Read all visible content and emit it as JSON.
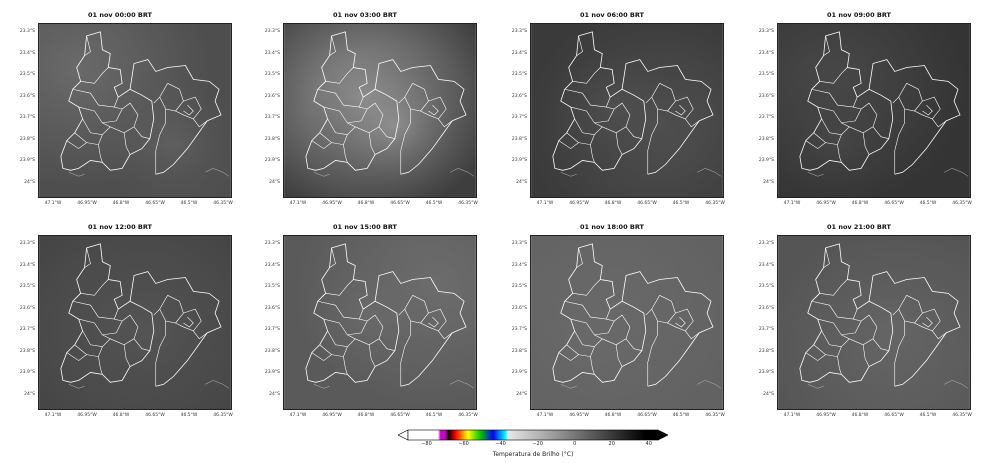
{
  "panels": [
    {
      "title": "01 nov 00:00 BRT",
      "tone": "#4e4e4e",
      "haze": "#6a6a6a"
    },
    {
      "title": "01 nov 03:00 BRT",
      "tone": "#3e3e3e",
      "haze": "#9a9a9a"
    },
    {
      "title": "01 nov 06:00 BRT",
      "tone": "#3a3a3a",
      "haze": "#525252"
    },
    {
      "title": "01 nov 09:00 BRT",
      "tone": "#343434",
      "haze": "#4a4a4a"
    },
    {
      "title": "01 nov 12:00 BRT",
      "tone": "#454545",
      "haze": "#555555"
    },
    {
      "title": "01 nov 15:00 BRT",
      "tone": "#5a5a5a",
      "haze": "#6e6e6e"
    },
    {
      "title": "01 nov 18:00 BRT",
      "tone": "#626262",
      "haze": "#6a6a6a"
    },
    {
      "title": "01 nov 21:00 BRT",
      "tone": "#555555",
      "haze": "#666666"
    }
  ],
  "y_ticks": [
    "23.3°S",
    "23.4°S",
    "23.5°S",
    "23.6°S",
    "23.7°S",
    "23.8°S",
    "23.9°S",
    "24°S"
  ],
  "x_ticks": [
    "47.1°W",
    "46.95°W",
    "46.8°W",
    "46.65°W",
    "46.5°W",
    "46.35°W"
  ],
  "colorbar": {
    "label": "Temperatura de Brilho (°C)",
    "ticks": [
      "−80",
      "−60",
      "−40",
      "−20",
      "0",
      "20",
      "40"
    ],
    "range": [
      -90,
      45
    ],
    "colors": {
      "white": "#ffffff",
      "magenta": "#c800c8",
      "black": "#000000",
      "red": "#ff0000",
      "yellow": "#ffff00",
      "green": "#00c800",
      "blue": "#0000ff",
      "cyan": "#00ffff",
      "gray_mid": "#9a9a9a"
    }
  },
  "boundary_color": "#ffffff"
}
